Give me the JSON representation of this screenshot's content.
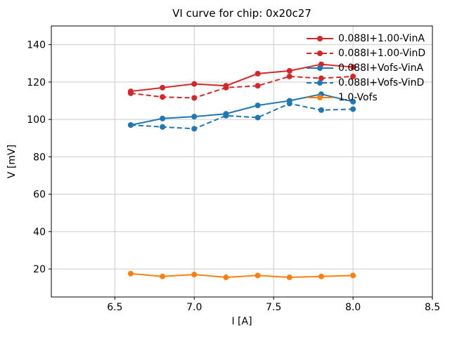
{
  "chart_data": {
    "type": "line",
    "title": "VI curve for chip: 0x20c27",
    "xlabel": "I [A]",
    "ylabel": "V [mV]",
    "xlim": [
      6.1,
      8.5
    ],
    "ylim": [
      5,
      150
    ],
    "grid": true,
    "legend_position": "upper right",
    "xticks": {
      "values": [
        6.5,
        7.0,
        7.5,
        8.0,
        8.5
      ],
      "labels": [
        "6.5",
        "7.0",
        "7.5",
        "8.0",
        "8.5"
      ]
    },
    "yticks": {
      "values": [
        20,
        40,
        60,
        80,
        100,
        120,
        140
      ],
      "labels": [
        "20",
        "40",
        "60",
        "80",
        "100",
        "120",
        "140"
      ]
    },
    "x": [
      6.6,
      6.8,
      7.0,
      7.2,
      7.4,
      7.6,
      7.8,
      8.0
    ],
    "series": [
      {
        "name": "0.088I+1.00-VinA",
        "color": "#d62728",
        "style": "solid",
        "values": [
          115,
          117,
          119,
          118,
          124.5,
          126,
          129.5,
          128
        ]
      },
      {
        "name": "0.088I+1.00-VinD",
        "color": "#d62728",
        "style": "dashed",
        "values": [
          114,
          112,
          111.5,
          117,
          118,
          123,
          122,
          123
        ]
      },
      {
        "name": "0.088I+Vofs-VinA",
        "color": "#1f77b4",
        "style": "solid",
        "values": [
          97,
          100.5,
          101.5,
          103,
          107.5,
          110,
          113.5,
          109.5
        ]
      },
      {
        "name": "0.088I+Vofs-VinD",
        "color": "#1f77b4",
        "style": "dashed",
        "values": [
          97,
          96,
          95,
          102,
          101,
          108.5,
          105,
          105.5
        ]
      },
      {
        "name": "1.0-Vofs",
        "color": "#ff7f0e",
        "style": "solid",
        "values": [
          17.5,
          16,
          17,
          15.5,
          16.5,
          15.5,
          16,
          16.5
        ]
      }
    ]
  }
}
